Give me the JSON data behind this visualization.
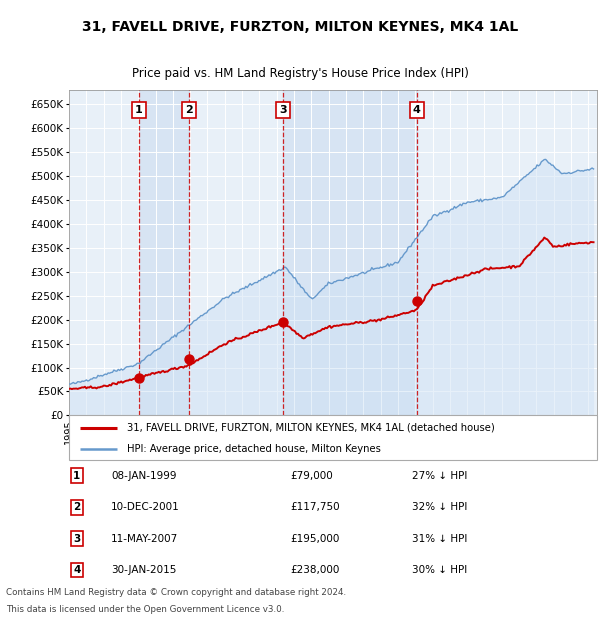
{
  "title": "31, FAVELL DRIVE, FURZTON, MILTON KEYNES, MK4 1AL",
  "subtitle": "Price paid vs. HM Land Registry's House Price Index (HPI)",
  "legend_house": "31, FAVELL DRIVE, FURZTON, MILTON KEYNES, MK4 1AL (detached house)",
  "legend_hpi": "HPI: Average price, detached house, Milton Keynes",
  "footer1": "Contains HM Land Registry data © Crown copyright and database right 2024.",
  "footer2": "This data is licensed under the Open Government Licence v3.0.",
  "sales": [
    {
      "num": 1,
      "date": "08-JAN-1999",
      "price": 79000,
      "pct": "27% ↓ HPI",
      "year": 1999.03
    },
    {
      "num": 2,
      "date": "10-DEC-2001",
      "price": 117750,
      "pct": "32% ↓ HPI",
      "year": 2001.94
    },
    {
      "num": 3,
      "date": "11-MAY-2007",
      "price": 195000,
      "pct": "31% ↓ HPI",
      "year": 2007.36
    },
    {
      "num": 4,
      "date": "30-JAN-2015",
      "price": 238000,
      "pct": "30% ↓ HPI",
      "year": 2015.08
    }
  ],
  "house_color": "#cc0000",
  "hpi_color": "#6699cc",
  "hpi_fill_color": "#cce0f5",
  "vline_color": "#cc0000",
  "ylim": [
    0,
    680000
  ],
  "yticks": [
    0,
    50000,
    100000,
    150000,
    200000,
    250000,
    300000,
    350000,
    400000,
    450000,
    500000,
    550000,
    600000,
    650000
  ],
  "xmin": 1995.0,
  "xmax": 2025.5,
  "plot_bg": "#e8f0f8"
}
